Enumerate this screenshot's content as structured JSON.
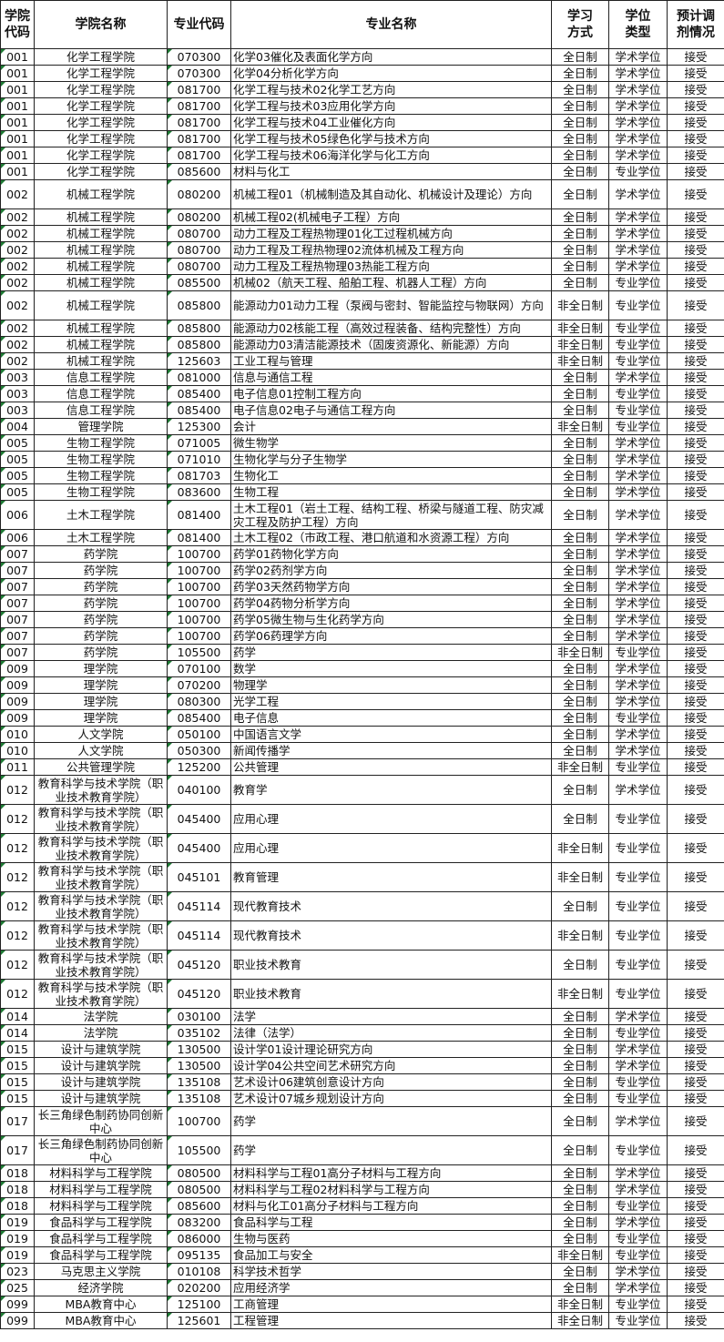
{
  "headers": [
    "学院代码",
    "学院名称",
    "专业代码",
    "专业名称",
    "学习方式",
    "学位类型",
    "预计调剂情况"
  ],
  "colors": {
    "border": "#222222",
    "text_flag": "#1e7b34"
  },
  "rows": [
    [
      "001",
      "化学工程学院",
      "070300",
      "化学03催化及表面化学方向",
      "全日制",
      "学术学位",
      "接受"
    ],
    [
      "001",
      "化学工程学院",
      "070300",
      "化学04分析化学方向",
      "全日制",
      "学术学位",
      "接受"
    ],
    [
      "001",
      "化学工程学院",
      "081700",
      "化学工程与技术02化学工艺方向",
      "全日制",
      "学术学位",
      "接受"
    ],
    [
      "001",
      "化学工程学院",
      "081700",
      "化学工程与技术03应用化学方向",
      "全日制",
      "学术学位",
      "接受"
    ],
    [
      "001",
      "化学工程学院",
      "081700",
      "化学工程与技术04工业催化方向",
      "全日制",
      "学术学位",
      "接受"
    ],
    [
      "001",
      "化学工程学院",
      "081700",
      "化学工程与技术05绿色化学与技术方向",
      "全日制",
      "学术学位",
      "接受"
    ],
    [
      "001",
      "化学工程学院",
      "081700",
      "化学工程与技术06海洋化学与化工方向",
      "全日制",
      "学术学位",
      "接受"
    ],
    [
      "001",
      "化学工程学院",
      "085600",
      "材料与化工",
      "全日制",
      "专业学位",
      "接受"
    ],
    [
      "002",
      "机械工程学院",
      "080200",
      "机械工程01（机械制造及其自动化、机械设计及理论）方向",
      "全日制",
      "学术学位",
      "接受"
    ],
    [
      "002",
      "机械工程学院",
      "080200",
      "机械工程02(机械电子工程）方向",
      "全日制",
      "学术学位",
      "接受"
    ],
    [
      "002",
      "机械工程学院",
      "080700",
      "动力工程及工程热物理01化工过程机械方向",
      "全日制",
      "学术学位",
      "接受"
    ],
    [
      "002",
      "机械工程学院",
      "080700",
      "动力工程及工程热物理02流体机械及工程方向",
      "全日制",
      "学术学位",
      "接受"
    ],
    [
      "002",
      "机械工程学院",
      "080700",
      "动力工程及工程热物理03热能工程方向",
      "全日制",
      "学术学位",
      "接受"
    ],
    [
      "002",
      "机械工程学院",
      "085500",
      "机械02（航天工程、船舶工程、机器人工程）方向",
      "全日制",
      "专业学位",
      "接受"
    ],
    [
      "002",
      "机械工程学院",
      "085800",
      "能源动力01动力工程（泵阀与密封、智能监控与物联网）方向",
      "非全日制",
      "专业学位",
      "接受"
    ],
    [
      "002",
      "机械工程学院",
      "085800",
      "能源动力02核能工程（高效过程装备、结构完整性）方向",
      "非全日制",
      "专业学位",
      "接受"
    ],
    [
      "002",
      "机械工程学院",
      "085800",
      "能源动力03清洁能源技术（固废资源化、新能源）方向",
      "非全日制",
      "专业学位",
      "接受"
    ],
    [
      "002",
      "机械工程学院",
      "125603",
      "工业工程与管理",
      "非全日制",
      "专业学位",
      "接受"
    ],
    [
      "003",
      "信息工程学院",
      "081000",
      "信息与通信工程",
      "全日制",
      "学术学位",
      "接受"
    ],
    [
      "003",
      "信息工程学院",
      "085400",
      "电子信息01控制工程方向",
      "全日制",
      "专业学位",
      "接受"
    ],
    [
      "003",
      "信息工程学院",
      "085400",
      "电子信息02电子与通信工程方向",
      "全日制",
      "专业学位",
      "接受"
    ],
    [
      "004",
      "管理学院",
      "125300",
      "会计",
      "非全日制",
      "专业学位",
      "接受"
    ],
    [
      "005",
      "生物工程学院",
      "071005",
      "微生物学",
      "全日制",
      "学术学位",
      "接受"
    ],
    [
      "005",
      "生物工程学院",
      "071010",
      "生物化学与分子生物学",
      "全日制",
      "学术学位",
      "接受"
    ],
    [
      "005",
      "生物工程学院",
      "081703",
      "生物化工",
      "全日制",
      "学术学位",
      "接受"
    ],
    [
      "005",
      "生物工程学院",
      "083600",
      "生物工程",
      "全日制",
      "学术学位",
      "接受"
    ],
    [
      "006",
      "土木工程学院",
      "081400",
      "土木工程01（岩土工程、结构工程、桥梁与隧道工程、防灾减灾工程及防护工程）方向",
      "全日制",
      "学术学位",
      "接受"
    ],
    [
      "006",
      "土木工程学院",
      "081400",
      "土木工程02（市政工程、港口航道和水资源工程）方向",
      "全日制",
      "学术学位",
      "接受"
    ],
    [
      "007",
      "药学院",
      "100700",
      "药学01药物化学方向",
      "全日制",
      "学术学位",
      "接受"
    ],
    [
      "007",
      "药学院",
      "100700",
      "药学02药剂学方向",
      "全日制",
      "学术学位",
      "接受"
    ],
    [
      "007",
      "药学院",
      "100700",
      "药学03天然药物学方向",
      "全日制",
      "学术学位",
      "接受"
    ],
    [
      "007",
      "药学院",
      "100700",
      "药学04药物分析学方向",
      "全日制",
      "学术学位",
      "接受"
    ],
    [
      "007",
      "药学院",
      "100700",
      "药学05微生物与生化药学方向",
      "全日制",
      "学术学位",
      "接受"
    ],
    [
      "007",
      "药学院",
      "100700",
      "药学06药理学方向",
      "全日制",
      "学术学位",
      "接受"
    ],
    [
      "007",
      "药学院",
      "105500",
      "药学",
      "非全日制",
      "专业学位",
      "接受"
    ],
    [
      "009",
      "理学院",
      "070100",
      "数学",
      "全日制",
      "学术学位",
      "接受"
    ],
    [
      "009",
      "理学院",
      "070200",
      "物理学",
      "全日制",
      "学术学位",
      "接受"
    ],
    [
      "009",
      "理学院",
      "080300",
      "光学工程",
      "全日制",
      "学术学位",
      "接受"
    ],
    [
      "009",
      "理学院",
      "085400",
      "电子信息",
      "全日制",
      "专业学位",
      "接受"
    ],
    [
      "010",
      "人文学院",
      "050100",
      "中国语言文学",
      "全日制",
      "学术学位",
      "接受"
    ],
    [
      "010",
      "人文学院",
      "050300",
      "新闻传播学",
      "全日制",
      "学术学位",
      "接受"
    ],
    [
      "011",
      "公共管理学院",
      "125200",
      "公共管理",
      "非全日制",
      "专业学位",
      "接受"
    ],
    [
      "012",
      "教育科学与技术学院（职业技术教育学院）",
      "040100",
      "教育学",
      "全日制",
      "学术学位",
      "接受"
    ],
    [
      "012",
      "教育科学与技术学院（职业技术教育学院）",
      "045400",
      "应用心理",
      "全日制",
      "专业学位",
      "接受"
    ],
    [
      "012",
      "教育科学与技术学院（职业技术教育学院）",
      "045400",
      "应用心理",
      "非全日制",
      "专业学位",
      "接受"
    ],
    [
      "012",
      "教育科学与技术学院（职业技术教育学院）",
      "045101",
      "教育管理",
      "非全日制",
      "专业学位",
      "接受"
    ],
    [
      "012",
      "教育科学与技术学院（职业技术教育学院）",
      "045114",
      "现代教育技术",
      "全日制",
      "专业学位",
      "接受"
    ],
    [
      "012",
      "教育科学与技术学院（职业技术教育学院）",
      "045114",
      "现代教育技术",
      "非全日制",
      "专业学位",
      "接受"
    ],
    [
      "012",
      "教育科学与技术学院（职业技术教育学院）",
      "045120",
      "职业技术教育",
      "全日制",
      "专业学位",
      "接受"
    ],
    [
      "012",
      "教育科学与技术学院（职业技术教育学院）",
      "045120",
      "职业技术教育",
      "非全日制",
      "专业学位",
      "接受"
    ],
    [
      "014",
      "法学院",
      "030100",
      "法学",
      "全日制",
      "学术学位",
      "接受"
    ],
    [
      "014",
      "法学院",
      "035102",
      "法律（法学）",
      "全日制",
      "专业学位",
      "接受"
    ],
    [
      "015",
      "设计与建筑学院",
      "130500",
      "设计学01设计理论研究方向",
      "全日制",
      "学术学位",
      "接受"
    ],
    [
      "015",
      "设计与建筑学院",
      "130500",
      "设计学04公共空间艺术研究方向",
      "全日制",
      "学术学位",
      "接受"
    ],
    [
      "015",
      "设计与建筑学院",
      "135108",
      "艺术设计06建筑创意设计方向",
      "全日制",
      "专业学位",
      "接受"
    ],
    [
      "015",
      "设计与建筑学院",
      "135108",
      "艺术设计07城乡规划设计方向",
      "全日制",
      "专业学位",
      "接受"
    ],
    [
      "017",
      "长三角绿色制药协同创新中心",
      "100700",
      "药学",
      "全日制",
      "学术学位",
      "接受"
    ],
    [
      "017",
      "长三角绿色制药协同创新中心",
      "105500",
      "药学",
      "全日制",
      "专业学位",
      "接受"
    ],
    [
      "018",
      "材料科学与工程学院",
      "080500",
      "材料科学与工程01高分子材料与工程方向",
      "全日制",
      "学术学位",
      "接受"
    ],
    [
      "018",
      "材料科学与工程学院",
      "080500",
      "材料科学与工程02材料科学与工程方向",
      "全日制",
      "学术学位",
      "接受"
    ],
    [
      "018",
      "材料科学与工程学院",
      "085600",
      "材料与化工01高分子材料与工程方向",
      "全日制",
      "专业学位",
      "接受"
    ],
    [
      "019",
      "食品科学与工程学院",
      "083200",
      "食品科学与工程",
      "全日制",
      "学术学位",
      "接受"
    ],
    [
      "019",
      "食品科学与工程学院",
      "086000",
      "生物与医药",
      "全日制",
      "专业学位",
      "接受"
    ],
    [
      "019",
      "食品科学与工程学院",
      "095135",
      "食品加工与安全",
      "非全日制",
      "专业学位",
      "接受"
    ],
    [
      "023",
      "马克思主义学院",
      "010108",
      "科学技术哲学",
      "全日制",
      "学术学位",
      "接受"
    ],
    [
      "025",
      "经济学院",
      "020200",
      "应用经济学",
      "全日制",
      "学术学位",
      "接受"
    ],
    [
      "099",
      "MBA教育中心",
      "125100",
      "工商管理",
      "非全日制",
      "专业学位",
      "接受"
    ],
    [
      "099",
      "MBA教育中心",
      "125601",
      "工程管理",
      "非全日制",
      "专业学位",
      "接受"
    ]
  ]
}
